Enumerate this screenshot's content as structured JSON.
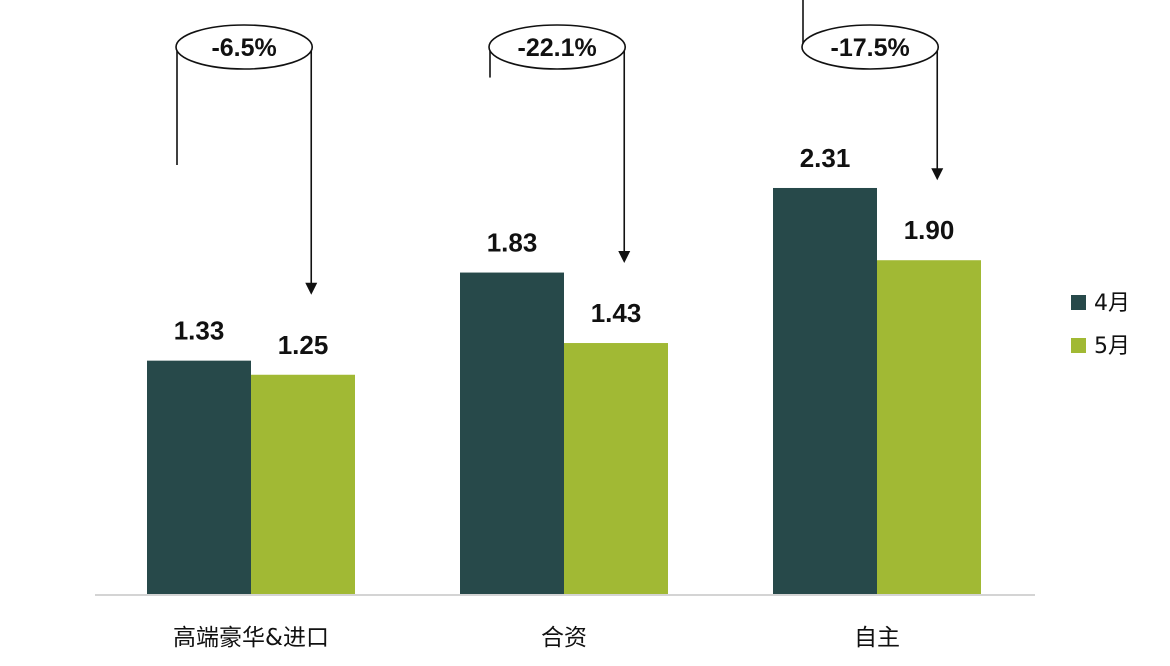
{
  "chart_data": {
    "type": "bar",
    "categories": [
      "高端豪华&进口",
      "合资",
      "自主"
    ],
    "series": [
      {
        "name": "4月",
        "values": [
          1.33,
          1.83,
          2.31
        ],
        "color": "#27494a"
      },
      {
        "name": "5月",
        "values": [
          1.25,
          1.43,
          1.9
        ],
        "color": "#a1b934"
      }
    ],
    "value_labels": [
      [
        "1.33",
        "1.83",
        "2.31"
      ],
      [
        "1.25",
        "1.43",
        "1.90"
      ]
    ],
    "changes": [
      "-6.5%",
      "-22.1%",
      "-17.5%"
    ],
    "ylim": [
      0,
      2.6
    ],
    "grid": false,
    "legend": "right",
    "title": "",
    "xlabel": "",
    "ylabel": ""
  }
}
